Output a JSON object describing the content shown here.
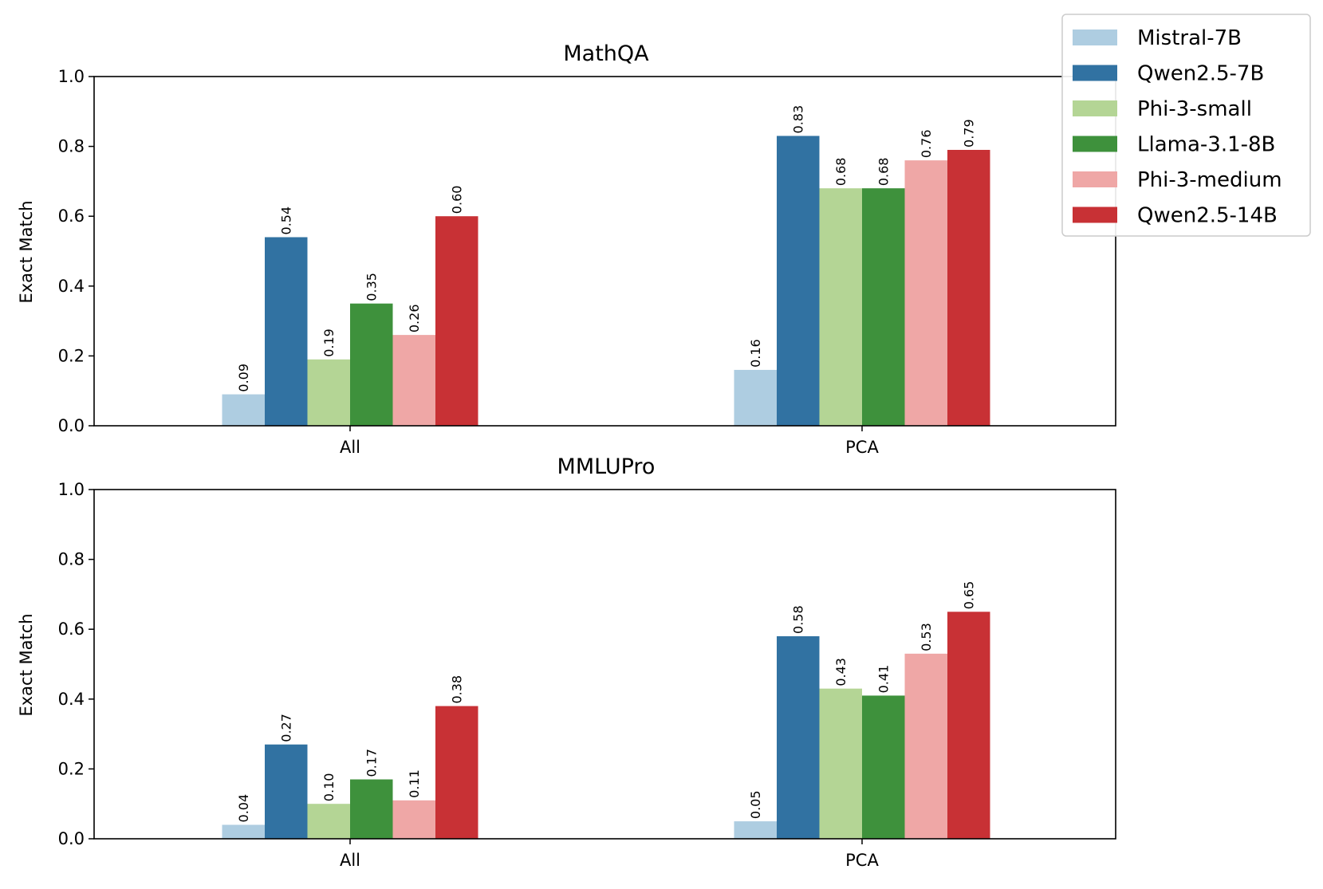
{
  "chart_data": [
    {
      "type": "bar",
      "title": "MathQA",
      "xlabel": "",
      "ylabel": "Exact Match",
      "ylim": [
        0,
        1.0
      ],
      "yticks": [
        "0.0",
        "0.2",
        "0.4",
        "0.6",
        "0.8",
        "1.0"
      ],
      "categories": [
        "All",
        "PCA"
      ],
      "series": [
        {
          "name": "Mistral-7B",
          "values": [
            0.09,
            0.16
          ],
          "labels": [
            "0.09",
            "0.16"
          ]
        },
        {
          "name": "Qwen2.5-7B",
          "values": [
            0.54,
            0.83
          ],
          "labels": [
            "0.54",
            "0.83"
          ]
        },
        {
          "name": "Phi-3-small",
          "values": [
            0.19,
            0.68
          ],
          "labels": [
            "0.19",
            "0.68"
          ]
        },
        {
          "name": "Llama-3.1-8B",
          "values": [
            0.35,
            0.68
          ],
          "labels": [
            "0.35",
            "0.68"
          ]
        },
        {
          "name": "Phi-3-medium",
          "values": [
            0.26,
            0.76
          ],
          "labels": [
            "0.26",
            "0.76"
          ]
        },
        {
          "name": "Qwen2.5-14B",
          "values": [
            0.6,
            0.79
          ],
          "labels": [
            "0.60",
            "0.79"
          ]
        }
      ]
    },
    {
      "type": "bar",
      "title": "MMLUPro",
      "xlabel": "",
      "ylabel": "Exact Match",
      "ylim": [
        0,
        1.0
      ],
      "yticks": [
        "0.0",
        "0.2",
        "0.4",
        "0.6",
        "0.8",
        "1.0"
      ],
      "categories": [
        "All",
        "PCA"
      ],
      "series": [
        {
          "name": "Mistral-7B",
          "values": [
            0.04,
            0.05
          ],
          "labels": [
            "0.04",
            "0.05"
          ]
        },
        {
          "name": "Qwen2.5-7B",
          "values": [
            0.27,
            0.58
          ],
          "labels": [
            "0.27",
            "0.58"
          ]
        },
        {
          "name": "Phi-3-small",
          "values": [
            0.1,
            0.43
          ],
          "labels": [
            "0.10",
            "0.43"
          ]
        },
        {
          "name": "Llama-3.1-8B",
          "values": [
            0.17,
            0.41
          ],
          "labels": [
            "0.17",
            "0.41"
          ]
        },
        {
          "name": "Phi-3-medium",
          "values": [
            0.11,
            0.53
          ],
          "labels": [
            "0.11",
            "0.53"
          ]
        },
        {
          "name": "Qwen2.5-14B",
          "values": [
            0.38,
            0.65
          ],
          "labels": [
            "0.38",
            "0.65"
          ]
        }
      ]
    }
  ],
  "legend": {
    "position": "top-right",
    "items": [
      {
        "name": "Mistral-7B",
        "color": "#aecde1"
      },
      {
        "name": "Qwen2.5-7B",
        "color": "#3172a2"
      },
      {
        "name": "Phi-3-small",
        "color": "#b4d595"
      },
      {
        "name": "Llama-3.1-8B",
        "color": "#3e913c"
      },
      {
        "name": "Phi-3-medium",
        "color": "#efa7a6"
      },
      {
        "name": "Qwen2.5-14B",
        "color": "#c83135"
      }
    ]
  }
}
